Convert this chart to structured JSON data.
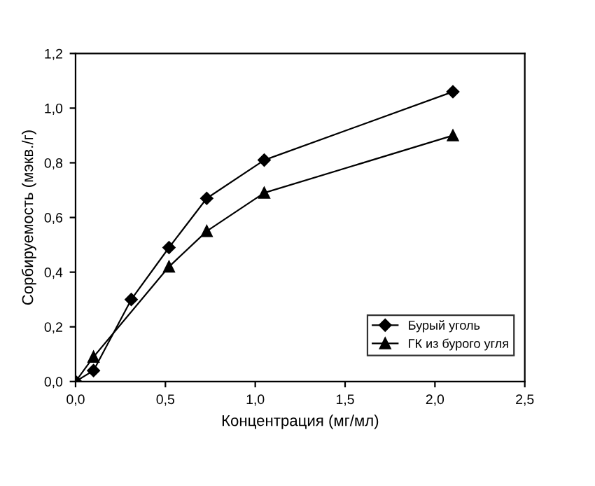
{
  "chart_data": {
    "type": "line",
    "xlabel": "Концентрация (мг/мл)",
    "ylabel": "Сорбируемость (мэкв./г)",
    "xlim": [
      0,
      2.5
    ],
    "ylim": [
      0,
      1.2
    ],
    "xticks": [
      {
        "value": 0,
        "label": "0,0"
      },
      {
        "value": 0.5,
        "label": "0,5"
      },
      {
        "value": 1,
        "label": "1,0"
      },
      {
        "value": 1.5,
        "label": "1,5"
      },
      {
        "value": 2,
        "label": "2,0"
      },
      {
        "value": 2.5,
        "label": "2,5"
      }
    ],
    "yticks": [
      {
        "value": 0,
        "label": "0,0"
      },
      {
        "value": 0.2,
        "label": "0,2"
      },
      {
        "value": 0.4,
        "label": "0,4"
      },
      {
        "value": 0.6,
        "label": "0,6"
      },
      {
        "value": 0.8,
        "label": "0,8"
      },
      {
        "value": 1.0,
        "label": "1,0"
      },
      {
        "value": 1.2,
        "label": "1,2"
      }
    ],
    "grid": false,
    "legend": "bottom right",
    "line_style": "solid",
    "series": [
      {
        "name": "Бурый уголь",
        "color": "#000000",
        "marker": "diamond",
        "x": [
          0,
          0.1,
          0.31,
          0.52,
          0.73,
          1.05,
          2.1
        ],
        "values": [
          0,
          0.04,
          0.3,
          0.49,
          0.67,
          0.81,
          1.06
        ]
      },
      {
        "name": "ГК из бурого угля",
        "color": "#000000",
        "marker": "triangle",
        "x": [
          0,
          0.1,
          0.52,
          0.73,
          1.05,
          2.1
        ],
        "values": [
          0,
          0.09,
          0.42,
          0.55,
          0.69,
          0.9
        ]
      }
    ]
  }
}
